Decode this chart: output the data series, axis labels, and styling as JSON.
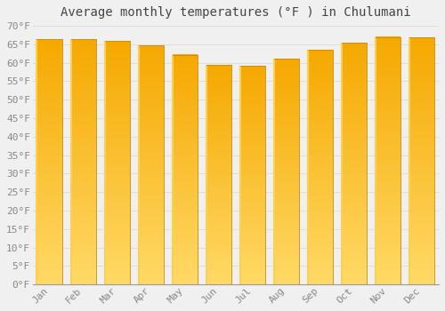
{
  "title": "Average monthly temperatures (°F ) in Chulumani",
  "months": [
    "Jan",
    "Feb",
    "Mar",
    "Apr",
    "May",
    "Jun",
    "Jul",
    "Aug",
    "Sep",
    "Oct",
    "Nov",
    "Dec"
  ],
  "values": [
    66.5,
    66.5,
    66.0,
    64.8,
    62.2,
    59.5,
    59.2,
    61.0,
    63.5,
    65.5,
    67.0,
    66.8
  ],
  "bar_color_top": "#F5A800",
  "bar_color_bottom": "#FFD966",
  "bar_edge_left": "#FFCF50",
  "bar_edge_color": "#CC8800",
  "ylim": [
    0,
    70
  ],
  "ytick_step": 5,
  "background_color": "#F0F0F0",
  "grid_color": "#DDDDDD",
  "title_fontsize": 10,
  "tick_fontsize": 8,
  "figsize": [
    5.0,
    3.5
  ],
  "dpi": 100
}
